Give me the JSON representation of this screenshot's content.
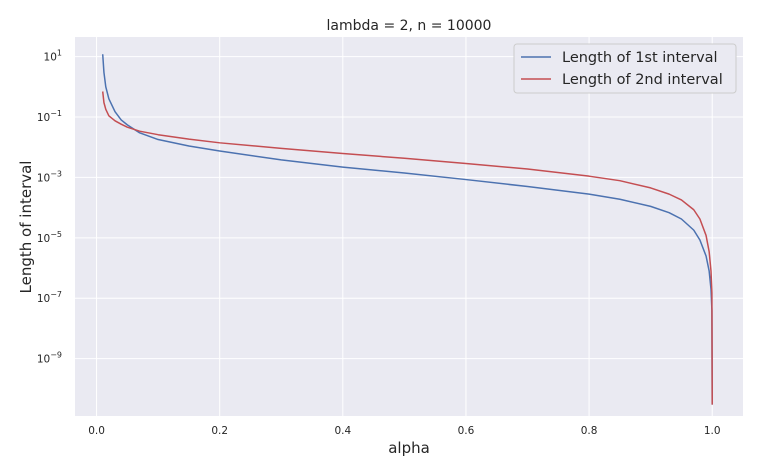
{
  "chart_data": {
    "type": "line",
    "title": "lambda = 2, n = 10000",
    "xlabel": "alpha",
    "ylabel": "Length of interval",
    "xlim": [
      -0.035,
      1.05
    ],
    "ylim_log10": [
      -10.9,
      1.65
    ],
    "yscale": "log",
    "grid": true,
    "legend_position": "top-right",
    "x_ticks": [
      "0.0",
      "0.2",
      "0.4",
      "0.6",
      "0.8",
      "1.0"
    ],
    "x_tick_values": [
      0.0,
      0.2,
      0.4,
      0.6,
      0.8,
      1.0
    ],
    "y_tick_exponents": [
      1,
      -1,
      -3,
      -5,
      -7,
      -9
    ],
    "colors": {
      "background": "#EAEAF2",
      "grid": "#FFFFFF",
      "series1": "#4C72B0",
      "series2": "#C44E52"
    },
    "series": [
      {
        "name": "Length of 1st interval",
        "color": "#4C72B0",
        "points": [
          [
            0.01,
            12.0
          ],
          [
            0.012,
            3.0
          ],
          [
            0.015,
            1.0
          ],
          [
            0.02,
            0.4
          ],
          [
            0.03,
            0.15
          ],
          [
            0.04,
            0.08
          ],
          [
            0.05,
            0.055
          ],
          [
            0.07,
            0.03
          ],
          [
            0.1,
            0.018
          ],
          [
            0.15,
            0.011
          ],
          [
            0.2,
            0.0075
          ],
          [
            0.3,
            0.0038
          ],
          [
            0.4,
            0.0022
          ],
          [
            0.5,
            0.0014
          ],
          [
            0.6,
            0.00085
          ],
          [
            0.7,
            0.0005
          ],
          [
            0.8,
            0.00028
          ],
          [
            0.85,
            0.00019
          ],
          [
            0.9,
            0.00011
          ],
          [
            0.93,
            6.8e-05
          ],
          [
            0.95,
            4.2e-05
          ],
          [
            0.97,
            1.8e-05
          ],
          [
            0.98,
            8.5e-06
          ],
          [
            0.99,
            2.5e-06
          ],
          [
            0.995,
            8e-07
          ],
          [
            0.998,
            2e-07
          ],
          [
            0.9995,
            4e-08
          ],
          [
            1.0,
            3e-11
          ]
        ]
      },
      {
        "name": "Length of 2nd interval",
        "color": "#C44E52",
        "points": [
          [
            0.01,
            0.7
          ],
          [
            0.012,
            0.3
          ],
          [
            0.015,
            0.18
          ],
          [
            0.02,
            0.11
          ],
          [
            0.03,
            0.075
          ],
          [
            0.04,
            0.058
          ],
          [
            0.05,
            0.046
          ],
          [
            0.07,
            0.034
          ],
          [
            0.1,
            0.026
          ],
          [
            0.15,
            0.0185
          ],
          [
            0.2,
            0.014
          ],
          [
            0.3,
            0.0092
          ],
          [
            0.4,
            0.0062
          ],
          [
            0.5,
            0.0043
          ],
          [
            0.6,
            0.0029
          ],
          [
            0.7,
            0.0019
          ],
          [
            0.8,
            0.0011
          ],
          [
            0.85,
            0.00078
          ],
          [
            0.9,
            0.00045
          ],
          [
            0.93,
            0.00028
          ],
          [
            0.95,
            0.00018
          ],
          [
            0.97,
            8.5e-05
          ],
          [
            0.98,
            4.2e-05
          ],
          [
            0.99,
            1.2e-05
          ],
          [
            0.995,
            3.5e-06
          ],
          [
            0.998,
            8e-07
          ],
          [
            0.9995,
            1.5e-07
          ],
          [
            1.0,
            3e-11
          ]
        ]
      }
    ]
  }
}
